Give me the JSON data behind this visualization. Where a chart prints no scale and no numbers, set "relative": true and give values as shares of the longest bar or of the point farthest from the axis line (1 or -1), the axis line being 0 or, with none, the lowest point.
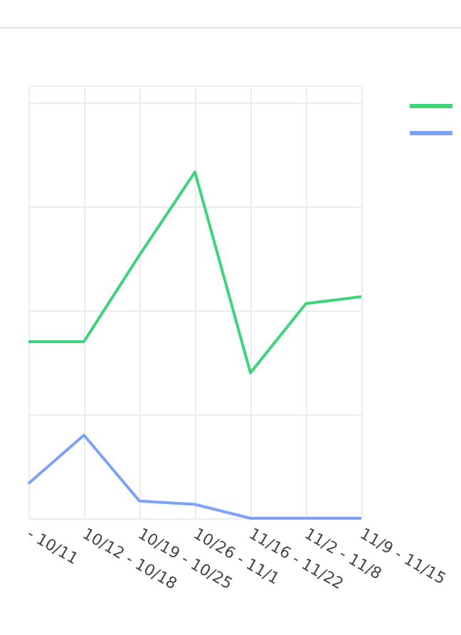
{
  "chart_data": {
    "type": "line",
    "relative": true,
    "grid": true,
    "categories": [
      "- 10/11",
      "10/12 - 10/18",
      "10/19 - 10/25",
      "10/26 - 11/1",
      "11/16 - 11/22",
      "11/2 - 11/8",
      "11/9 - 11/15"
    ],
    "series": [
      {
        "color": "#3ed47a",
        "values": [
          0.51,
          0.51,
          0.76,
          1,
          0.42,
          0.62,
          0.64
        ]
      },
      {
        "color": "#7ba2f8",
        "values": [
          0.1,
          0.24,
          0.05,
          0.04,
          0,
          0,
          0
        ]
      }
    ]
  }
}
